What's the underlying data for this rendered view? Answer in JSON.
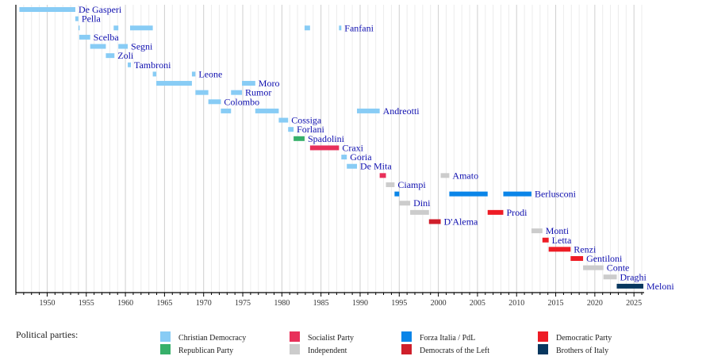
{
  "chart_data": {
    "type": "timeline",
    "xlim": [
      1946,
      2026.3
    ],
    "x_ticks": [
      1950,
      1955,
      1960,
      1965,
      1970,
      1975,
      1980,
      1985,
      1990,
      1995,
      2000,
      2005,
      2010,
      2015,
      2020,
      2025
    ],
    "grid": true,
    "legend_title": "Political parties:",
    "legend_placement": "bottom",
    "parties": [
      {
        "key": "dc",
        "name": "Christian Democracy",
        "color": "#88ccf5"
      },
      {
        "key": "psi",
        "name": "Socialist Party",
        "color": "#e8305a"
      },
      {
        "key": "fi",
        "name": "Forza Italia / PdL",
        "color": "#0a85e8"
      },
      {
        "key": "pd",
        "name": "Democratic Party",
        "color": "#ee1c25"
      },
      {
        "key": "pri",
        "name": "Republican Party",
        "color": "#37b06a"
      },
      {
        "key": "ind",
        "name": "Independent",
        "color": "#cccccc"
      },
      {
        "key": "ds",
        "name": "Democrats of the Left",
        "color": "#cf1f2b"
      },
      {
        "key": "fdi",
        "name": "Brothers of Italy",
        "color": "#08375f"
      }
    ],
    "rows": [
      {
        "name": "De Gasperi",
        "terms": [
          [
            1946.45,
            1953.6,
            "dc"
          ]
        ]
      },
      {
        "name": "Pella",
        "terms": [
          [
            1953.6,
            1954.0,
            "dc"
          ]
        ]
      },
      {
        "name": "Fanfani",
        "terms": [
          [
            1954.0,
            1954.1,
            "dc"
          ],
          [
            1958.5,
            1959.1,
            "dc"
          ],
          [
            1960.6,
            1963.5,
            "dc"
          ],
          [
            1982.9,
            1983.6,
            "dc"
          ],
          [
            1987.3,
            1987.6,
            "dc"
          ]
        ]
      },
      {
        "name": "Scelba",
        "terms": [
          [
            1954.1,
            1955.5,
            "dc"
          ]
        ]
      },
      {
        "name": "Segni",
        "terms": [
          [
            1955.5,
            1957.5,
            "dc"
          ],
          [
            1959.1,
            1960.3,
            "dc"
          ]
        ]
      },
      {
        "name": "Zoli",
        "terms": [
          [
            1957.5,
            1958.6,
            "dc"
          ]
        ]
      },
      {
        "name": "Tambroni",
        "terms": [
          [
            1960.3,
            1960.7,
            "dc"
          ]
        ]
      },
      {
        "name": "Leone",
        "terms": [
          [
            1963.5,
            1963.95,
            "dc"
          ],
          [
            1968.5,
            1968.95,
            "dc"
          ]
        ]
      },
      {
        "name": "Moro",
        "terms": [
          [
            1963.95,
            1968.5,
            "dc"
          ],
          [
            1974.9,
            1976.6,
            "dc"
          ]
        ]
      },
      {
        "name": "Rumor",
        "terms": [
          [
            1968.95,
            1970.6,
            "dc"
          ],
          [
            1973.5,
            1974.9,
            "dc"
          ]
        ]
      },
      {
        "name": "Colombo",
        "terms": [
          [
            1970.6,
            1972.2,
            "dc"
          ]
        ]
      },
      {
        "name": "Andreotti",
        "terms": [
          [
            1972.2,
            1973.5,
            "dc"
          ],
          [
            1976.6,
            1979.6,
            "dc"
          ],
          [
            1989.6,
            1992.5,
            "dc"
          ]
        ]
      },
      {
        "name": "Cossiga",
        "terms": [
          [
            1979.6,
            1980.8,
            "dc"
          ]
        ]
      },
      {
        "name": "Forlani",
        "terms": [
          [
            1980.8,
            1981.5,
            "dc"
          ]
        ]
      },
      {
        "name": "Spadolini",
        "terms": [
          [
            1981.5,
            1982.9,
            "pri"
          ]
        ]
      },
      {
        "name": "Craxi",
        "terms": [
          [
            1983.6,
            1987.3,
            "psi"
          ]
        ]
      },
      {
        "name": "Goria",
        "terms": [
          [
            1987.6,
            1988.3,
            "dc"
          ]
        ]
      },
      {
        "name": "De Mita",
        "terms": [
          [
            1988.3,
            1989.6,
            "dc"
          ]
        ]
      },
      {
        "name": "Amato",
        "terms": [
          [
            1992.5,
            1993.3,
            "psi"
          ],
          [
            2000.3,
            2001.4,
            "ind"
          ]
        ]
      },
      {
        "name": "Ciampi",
        "terms": [
          [
            1993.3,
            1994.4,
            "ind"
          ]
        ]
      },
      {
        "name": "Berlusconi",
        "terms": [
          [
            1994.4,
            1995.0,
            "fi"
          ],
          [
            2001.4,
            2006.3,
            "fi"
          ],
          [
            2008.3,
            2011.9,
            "fi"
          ]
        ]
      },
      {
        "name": "Dini",
        "terms": [
          [
            1995.0,
            1996.4,
            "ind"
          ]
        ]
      },
      {
        "name": "Prodi",
        "terms": [
          [
            1996.4,
            1998.8,
            "ind"
          ],
          [
            2006.3,
            2008.3,
            "pd"
          ]
        ]
      },
      {
        "name": "D'Alema",
        "terms": [
          [
            1998.8,
            2000.3,
            "ds"
          ]
        ]
      },
      {
        "name": "Monti",
        "terms": [
          [
            2011.9,
            2013.3,
            "ind"
          ]
        ]
      },
      {
        "name": "Letta",
        "terms": [
          [
            2013.3,
            2014.1,
            "pd"
          ]
        ]
      },
      {
        "name": "Renzi",
        "terms": [
          [
            2014.1,
            2016.9,
            "pd"
          ]
        ]
      },
      {
        "name": "Gentiloni",
        "terms": [
          [
            2016.9,
            2018.5,
            "pd"
          ]
        ]
      },
      {
        "name": "Conte",
        "terms": [
          [
            2018.5,
            2021.1,
            "ind"
          ]
        ]
      },
      {
        "name": "Draghi",
        "terms": [
          [
            2021.1,
            2022.8,
            "ind"
          ]
        ]
      },
      {
        "name": "Meloni",
        "terms": [
          [
            2022.8,
            2026.2,
            "fdi"
          ]
        ]
      }
    ]
  }
}
